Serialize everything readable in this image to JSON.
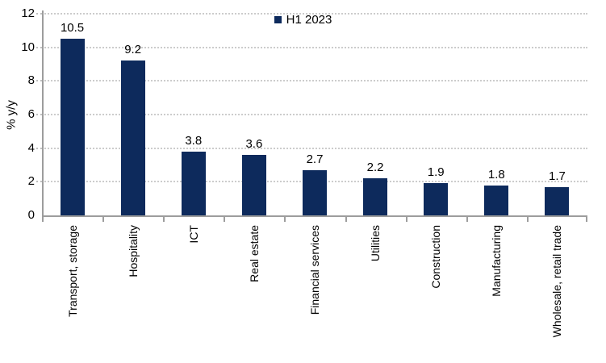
{
  "chart_data": {
    "type": "bar",
    "categories": [
      "Transport, storage",
      "Hospitality",
      "ICT",
      "Real estate",
      "Financial services",
      "Utilities",
      "Construction",
      "Manufacturing",
      "Wholesale, retail trade"
    ],
    "values": [
      10.5,
      9.2,
      3.8,
      3.6,
      2.7,
      2.2,
      1.9,
      1.8,
      1.7
    ],
    "series_name": "H1 2023",
    "title": "",
    "xlabel": "",
    "ylabel": "% y/y",
    "ylim": [
      0,
      12
    ],
    "yticks": [
      0,
      2,
      4,
      6,
      8,
      10,
      12
    ],
    "grid": "horizontal-dotted",
    "legend_position": "top-center",
    "data_labels": true,
    "colors": {
      "bar": "#0d2a5c",
      "axis": "#9d9d9d",
      "gridline": "#cccccc",
      "text": "#000000"
    }
  }
}
